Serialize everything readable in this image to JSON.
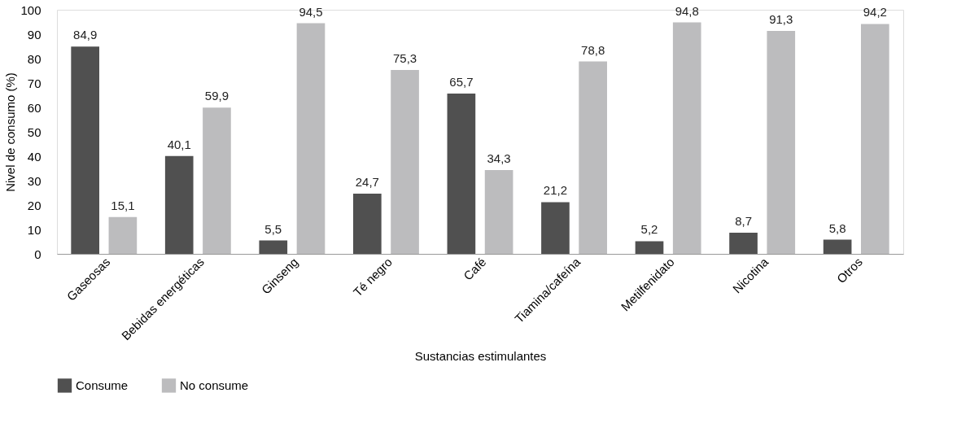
{
  "chart_data": {
    "type": "bar",
    "xlabel": "Sustancias estimulantes",
    "ylabel": "Nivel de consumo (%)",
    "categories": [
      "Gaseosas",
      "Bebidas energéticas",
      "Ginseng",
      "Té negro",
      "Café",
      "Tiamina/cafeína",
      "Metilfenidato",
      "Nicotina",
      "Otros"
    ],
    "series": [
      {
        "name": "Consume",
        "color": "#505050",
        "values": [
          84.9,
          40.1,
          5.5,
          24.7,
          65.7,
          21.2,
          5.2,
          8.7,
          5.8
        ],
        "value_labels": [
          "84,9",
          "40,1",
          "5,5",
          "24,7",
          "65,7",
          "21,2",
          "5,2",
          "8,7",
          "5,8"
        ]
      },
      {
        "name": "No consume",
        "color": "#bcbcbe",
        "values": [
          15.1,
          59.9,
          94.5,
          75.3,
          34.3,
          78.8,
          94.8,
          91.3,
          94.2
        ],
        "value_labels": [
          "15,1",
          "59,9",
          "94,5",
          "75,3",
          "34,3",
          "78,8",
          "94,8",
          "91,3",
          "94,2"
        ]
      }
    ],
    "ylim": [
      0,
      100
    ],
    "yticks": [
      0,
      10,
      20,
      30,
      40,
      50,
      60,
      70,
      80,
      90,
      100
    ],
    "grid": false,
    "legend": "bottom"
  }
}
